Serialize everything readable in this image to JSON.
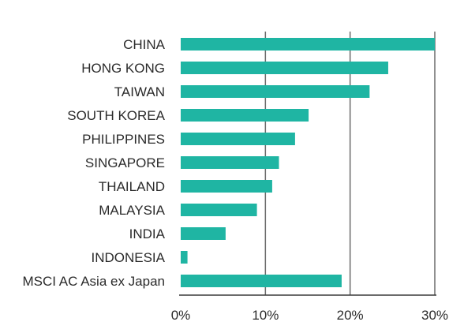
{
  "chart_data": {
    "type": "bar",
    "orientation": "horizontal",
    "categories": [
      "CHINA",
      "HONG KONG",
      "TAIWAN",
      "SOUTH KOREA",
      "PHILIPPINES",
      "SINGAPORE",
      "THAILAND",
      "MALAYSIA",
      "INDIA",
      "INDONESIA",
      "MSCI AC Asia ex Japan"
    ],
    "values": [
      30.0,
      24.5,
      22.3,
      15.1,
      13.5,
      11.6,
      10.8,
      9.0,
      5.3,
      0.8,
      19.0
    ],
    "xlim": [
      0,
      30
    ],
    "xticks": [
      "0%",
      "10%",
      "20%",
      "30%"
    ],
    "tick_values": [
      0,
      10,
      20,
      30
    ],
    "grid": "vertical",
    "bar_color": "#1fb5a3"
  }
}
